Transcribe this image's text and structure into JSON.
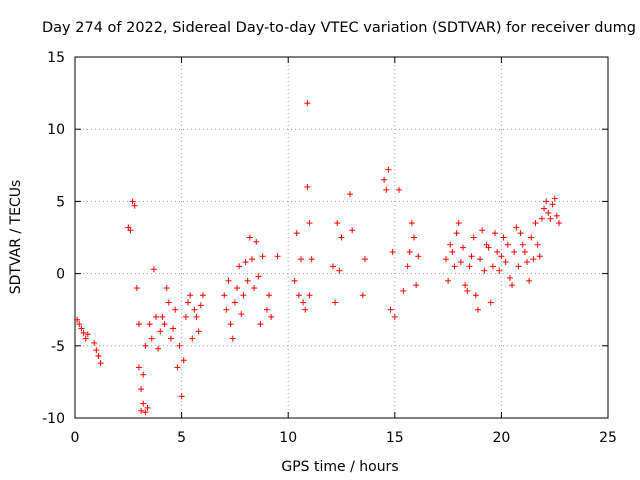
{
  "chart_data": {
    "type": "scatter",
    "title": "Day 274 of 2022, Sidereal Day-to-day VTEC variation (SDTVAR) for receiver dumg",
    "xlabel": "GPS time / hours",
    "ylabel": "SDTVAR / TECUs",
    "xlim": [
      0,
      25
    ],
    "ylim": [
      -10,
      15
    ],
    "xticks": [
      0,
      5,
      10,
      15,
      20,
      25
    ],
    "yticks": [
      -10,
      -5,
      0,
      5,
      10,
      15
    ],
    "xtick_labels": [
      "0",
      "5",
      "10",
      "15",
      "20",
      "25"
    ],
    "ytick_labels": [
      "-10",
      "-5",
      "0",
      "5",
      "10",
      "15"
    ],
    "grid": true,
    "marker": "+",
    "series": [
      {
        "name": "SDTVAR",
        "color": "#ff0000",
        "x": [
          0.1,
          0.2,
          0.3,
          0.4,
          0.5,
          0.6,
          0.9,
          1.0,
          1.1,
          1.2,
          2.5,
          2.6,
          2.7,
          2.8,
          2.9,
          3.0,
          3.0,
          3.1,
          3.1,
          3.2,
          3.2,
          3.3,
          3.3,
          3.4,
          3.5,
          3.6,
          3.7,
          3.8,
          3.9,
          4.0,
          4.1,
          4.2,
          4.3,
          4.4,
          4.5,
          4.6,
          4.7,
          4.8,
          4.9,
          5.0,
          5.1,
          5.2,
          5.3,
          5.4,
          5.5,
          5.6,
          5.7,
          5.8,
          5.9,
          6.0,
          7.0,
          7.1,
          7.2,
          7.3,
          7.4,
          7.5,
          7.6,
          7.7,
          7.8,
          7.9,
          8.0,
          8.1,
          8.2,
          8.3,
          8.4,
          8.5,
          8.6,
          8.7,
          8.8,
          9.0,
          9.1,
          9.2,
          9.5,
          10.3,
          10.4,
          10.5,
          10.6,
          10.7,
          10.8,
          10.9,
          10.9,
          11.0,
          11.0,
          11.1,
          12.1,
          12.2,
          12.3,
          12.4,
          12.5,
          12.9,
          13.0,
          13.5,
          13.6,
          14.5,
          14.6,
          14.7,
          14.8,
          14.9,
          15.0,
          15.2,
          15.4,
          15.6,
          15.7,
          15.8,
          15.9,
          16.0,
          16.1,
          17.4,
          17.5,
          17.6,
          17.7,
          17.8,
          17.9,
          18.0,
          18.1,
          18.2,
          18.3,
          18.4,
          18.5,
          18.6,
          18.7,
          18.8,
          18.9,
          19.0,
          19.1,
          19.2,
          19.3,
          19.4,
          19.5,
          19.6,
          19.7,
          19.8,
          19.9,
          20.0,
          20.1,
          20.2,
          20.3,
          20.4,
          20.5,
          20.6,
          20.7,
          20.8,
          20.9,
          21.0,
          21.1,
          21.2,
          21.3,
          21.4,
          21.5,
          21.6,
          21.7,
          21.8,
          21.9,
          22.0,
          22.1,
          22.2,
          22.3,
          22.4,
          22.5,
          22.6,
          22.7
        ],
        "y": [
          -3.2,
          -3.5,
          -3.8,
          -4.1,
          -4.5,
          -4.2,
          -4.8,
          -5.3,
          -5.7,
          -6.2,
          3.2,
          3.0,
          5.0,
          4.7,
          -1.0,
          -3.5,
          -6.5,
          -8.0,
          -9.5,
          -9.0,
          -7.0,
          -5.0,
          -9.6,
          -9.3,
          -3.5,
          -4.5,
          0.3,
          -3.0,
          -5.2,
          -4.0,
          -3.0,
          -3.5,
          -1.0,
          -2.0,
          -4.5,
          -3.8,
          -2.5,
          -6.5,
          -5.0,
          -8.5,
          -6.0,
          -3.0,
          -2.0,
          -1.5,
          -4.5,
          -2.5,
          -3.0,
          -4.0,
          -2.2,
          -1.5,
          -1.5,
          -2.5,
          -0.5,
          -3.5,
          -4.5,
          -2.0,
          -1.0,
          0.5,
          -2.8,
          -1.5,
          0.8,
          -0.5,
          2.5,
          1.0,
          -1.0,
          2.2,
          -0.2,
          -3.5,
          1.2,
          -2.5,
          -1.5,
          -3.0,
          1.2,
          -0.5,
          2.8,
          -1.5,
          1.0,
          -2.0,
          -2.5,
          6.0,
          11.8,
          3.5,
          -1.5,
          1.0,
          0.5,
          -2.0,
          3.5,
          0.2,
          2.5,
          5.5,
          3.0,
          -1.5,
          1.0,
          6.5,
          5.8,
          7.2,
          -2.5,
          1.5,
          -3.0,
          5.8,
          -1.2,
          0.5,
          1.5,
          3.5,
          2.5,
          -0.8,
          1.2,
          1.0,
          -0.5,
          2.0,
          1.5,
          0.5,
          2.8,
          3.5,
          0.8,
          1.8,
          -0.8,
          -1.2,
          0.5,
          1.2,
          2.5,
          -1.5,
          -2.5,
          1.0,
          3.0,
          0.2,
          2.0,
          1.8,
          -2.0,
          0.5,
          2.8,
          1.5,
          0.2,
          1.2,
          2.5,
          0.8,
          2.0,
          -0.3,
          -0.8,
          1.5,
          3.2,
          0.5,
          2.8,
          2.0,
          1.5,
          0.8,
          -0.5,
          2.5,
          1.0,
          3.5,
          2.0,
          1.2,
          3.8,
          4.5,
          5.0,
          4.2,
          3.8,
          4.8,
          5.2,
          4.0,
          3.5
        ]
      }
    ]
  }
}
